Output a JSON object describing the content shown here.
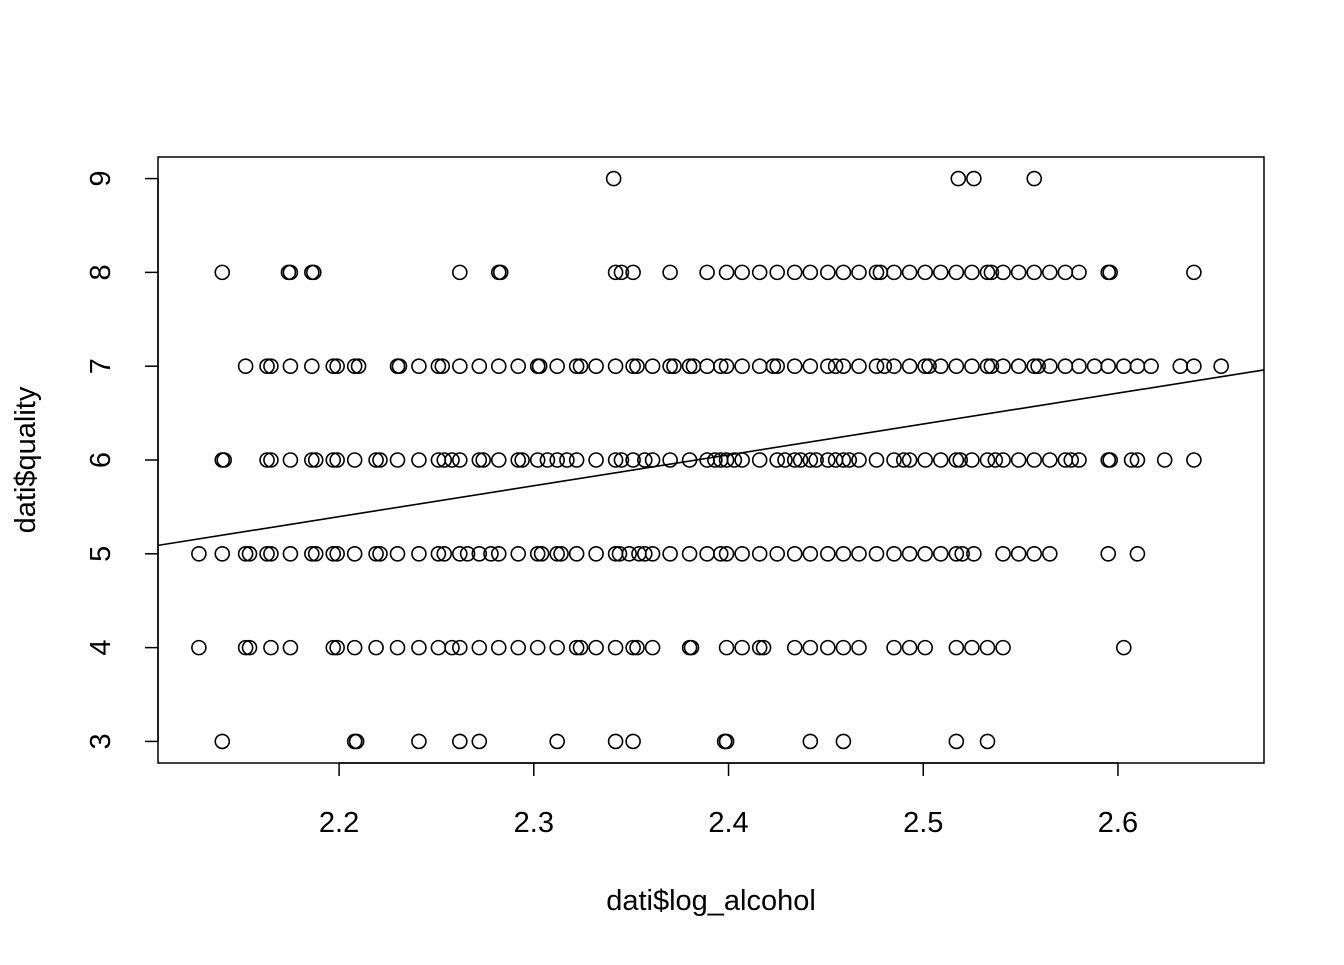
{
  "chart_data": {
    "type": "scatter",
    "title": "",
    "xlabel": "dati$log_alcohol",
    "ylabel": "dati$quality",
    "xlim": [
      2.107,
      2.675
    ],
    "ylim": [
      2.77,
      9.23
    ],
    "x_ticks": [
      "2.2",
      "2.3",
      "2.4",
      "2.5",
      "2.6"
    ],
    "y_ticks": [
      "3",
      "4",
      "5",
      "6",
      "7",
      "8",
      "9"
    ],
    "grid": false,
    "point_style": "open-circle",
    "regression_line": {
      "x": [
        2.107,
        2.675
      ],
      "y": [
        5.09,
        6.96
      ]
    },
    "series": [
      {
        "y": 9,
        "x": [
          2.341,
          2.518,
          2.526,
          2.557
        ]
      },
      {
        "y": 8,
        "x": [
          2.14,
          2.174,
          2.175,
          2.186,
          2.187,
          2.262,
          2.282,
          2.283,
          2.342,
          2.345,
          2.351,
          2.37,
          2.389,
          2.399,
          2.407,
          2.416,
          2.425,
          2.434,
          2.442,
          2.451,
          2.459,
          2.467,
          2.476,
          2.478,
          2.485,
          2.493,
          2.501,
          2.509,
          2.517,
          2.525,
          2.533,
          2.535,
          2.541,
          2.549,
          2.557,
          2.565,
          2.573,
          2.58,
          2.595,
          2.596,
          2.639
        ]
      },
      {
        "y": 7,
        "x": [
          2.152,
          2.163,
          2.165,
          2.175,
          2.186,
          2.197,
          2.199,
          2.208,
          2.21,
          2.23,
          2.231,
          2.241,
          2.251,
          2.253,
          2.262,
          2.272,
          2.282,
          2.292,
          2.302,
          2.303,
          2.312,
          2.322,
          2.324,
          2.332,
          2.342,
          2.351,
          2.353,
          2.361,
          2.37,
          2.372,
          2.38,
          2.382,
          2.389,
          2.396,
          2.399,
          2.407,
          2.416,
          2.423,
          2.425,
          2.434,
          2.442,
          2.451,
          2.455,
          2.459,
          2.467,
          2.476,
          2.48,
          2.485,
          2.493,
          2.501,
          2.503,
          2.509,
          2.517,
          2.525,
          2.533,
          2.535,
          2.541,
          2.549,
          2.557,
          2.559,
          2.565,
          2.573,
          2.58,
          2.588,
          2.595,
          2.603,
          2.61,
          2.617,
          2.632,
          2.639,
          2.653
        ]
      },
      {
        "y": 6,
        "x": [
          2.14,
          2.141,
          2.163,
          2.165,
          2.175,
          2.186,
          2.188,
          2.197,
          2.199,
          2.208,
          2.219,
          2.221,
          2.23,
          2.241,
          2.251,
          2.254,
          2.258,
          2.262,
          2.272,
          2.274,
          2.282,
          2.292,
          2.294,
          2.302,
          2.307,
          2.312,
          2.317,
          2.322,
          2.332,
          2.342,
          2.345,
          2.351,
          2.357,
          2.361,
          2.37,
          2.38,
          2.389,
          2.393,
          2.396,
          2.399,
          2.403,
          2.407,
          2.416,
          2.425,
          2.429,
          2.434,
          2.437,
          2.442,
          2.445,
          2.451,
          2.455,
          2.459,
          2.462,
          2.467,
          2.476,
          2.485,
          2.49,
          2.493,
          2.501,
          2.509,
          2.517,
          2.519,
          2.525,
          2.533,
          2.537,
          2.541,
          2.549,
          2.557,
          2.565,
          2.573,
          2.576,
          2.58,
          2.595,
          2.596,
          2.607,
          2.61,
          2.624,
          2.639
        ]
      },
      {
        "y": 5,
        "x": [
          2.128,
          2.14,
          2.152,
          2.154,
          2.163,
          2.165,
          2.175,
          2.186,
          2.188,
          2.197,
          2.199,
          2.208,
          2.219,
          2.221,
          2.23,
          2.241,
          2.251,
          2.254,
          2.262,
          2.266,
          2.272,
          2.278,
          2.282,
          2.292,
          2.302,
          2.304,
          2.312,
          2.314,
          2.322,
          2.332,
          2.342,
          2.344,
          2.349,
          2.354,
          2.357,
          2.361,
          2.37,
          2.38,
          2.389,
          2.396,
          2.399,
          2.407,
          2.416,
          2.425,
          2.434,
          2.442,
          2.451,
          2.459,
          2.467,
          2.476,
          2.485,
          2.493,
          2.501,
          2.509,
          2.517,
          2.52,
          2.526,
          2.541,
          2.549,
          2.557,
          2.565,
          2.595,
          2.61
        ]
      },
      {
        "y": 4,
        "x": [
          2.128,
          2.152,
          2.154,
          2.165,
          2.175,
          2.197,
          2.199,
          2.208,
          2.219,
          2.23,
          2.241,
          2.251,
          2.258,
          2.262,
          2.272,
          2.282,
          2.292,
          2.302,
          2.312,
          2.322,
          2.324,
          2.332,
          2.342,
          2.351,
          2.353,
          2.361,
          2.38,
          2.381,
          2.399,
          2.407,
          2.416,
          2.418,
          2.434,
          2.442,
          2.451,
          2.459,
          2.467,
          2.485,
          2.493,
          2.501,
          2.517,
          2.525,
          2.533,
          2.541,
          2.603
        ]
      },
      {
        "y": 3,
        "x": [
          2.14,
          2.208,
          2.209,
          2.241,
          2.262,
          2.272,
          2.312,
          2.342,
          2.351,
          2.398,
          2.399,
          2.442,
          2.459,
          2.517,
          2.533
        ]
      }
    ]
  }
}
